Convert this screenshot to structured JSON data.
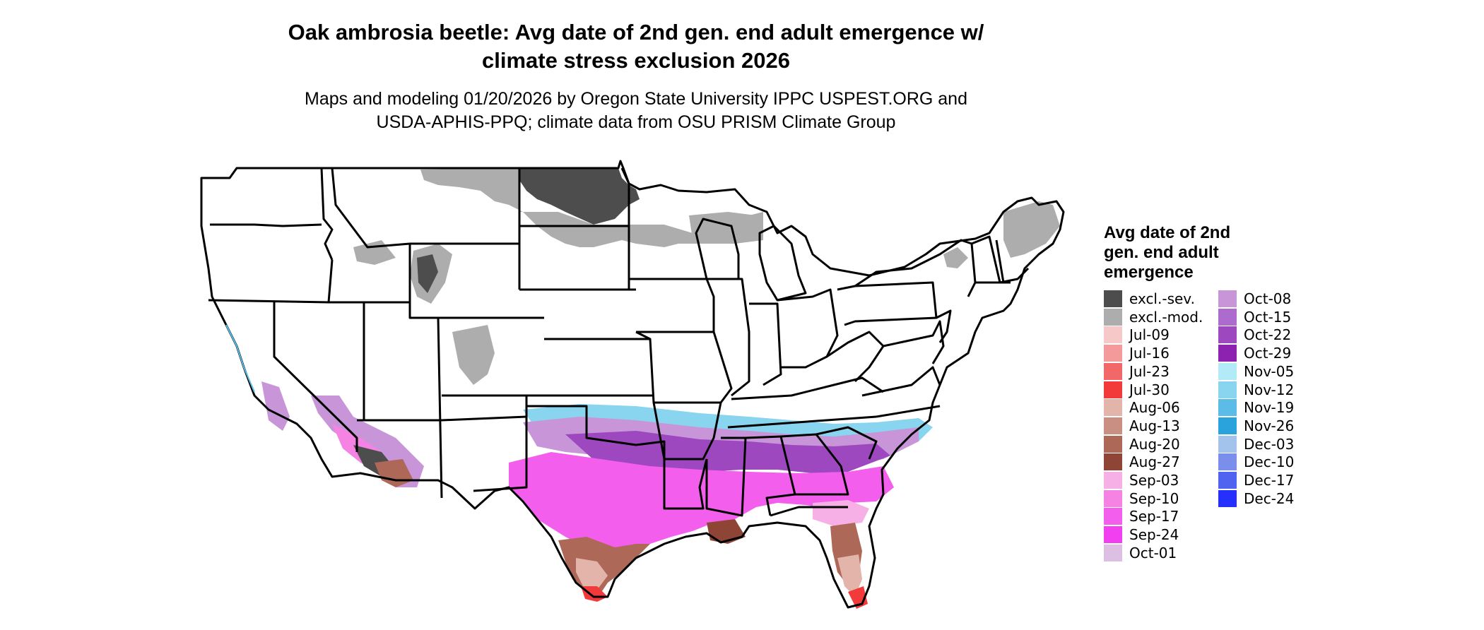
{
  "title_line1": "Oak ambrosia beetle: Avg date of 2nd gen. end adult emergence w/",
  "title_line2": "climate stress exclusion 2026",
  "subtitle_line1": "Maps and modeling 01/20/2026 by Oregon State University IPPC USPEST.ORG and",
  "subtitle_line2": "USDA-APHIS-PPQ; climate data from OSU PRISM Climate Group",
  "legend": {
    "title_line1": "Avg date of 2nd",
    "title_line2": "gen. end adult",
    "title_line3": "emergence",
    "items": [
      {
        "label": "excl.-sev.",
        "color": "#4d4d4d"
      },
      {
        "label": "excl.-mod.",
        "color": "#adadad"
      },
      {
        "label": "Jul-09",
        "color": "#f7c8c8"
      },
      {
        "label": "Jul-16",
        "color": "#f49a9a"
      },
      {
        "label": "Jul-23",
        "color": "#f26868"
      },
      {
        "label": "Jul-30",
        "color": "#f23a3a"
      },
      {
        "label": "Aug-06",
        "color": "#e3b4aa"
      },
      {
        "label": "Aug-13",
        "color": "#c98f82"
      },
      {
        "label": "Aug-20",
        "color": "#ad6858"
      },
      {
        "label": "Aug-27",
        "color": "#8f4535"
      },
      {
        "label": "Sep-03",
        "color": "#f7b0e6"
      },
      {
        "label": "Sep-10",
        "color": "#f483e4"
      },
      {
        "label": "Sep-17",
        "color": "#f35fec"
      },
      {
        "label": "Sep-24",
        "color": "#f23ff0"
      },
      {
        "label": "Oct-01",
        "color": "#ddbfe3"
      },
      {
        "label": "Oct-08",
        "color": "#c895d8"
      },
      {
        "label": "Oct-15",
        "color": "#ad6ccd"
      },
      {
        "label": "Oct-22",
        "color": "#9e48c0"
      },
      {
        "label": "Oct-29",
        "color": "#8e22b0"
      },
      {
        "label": "Nov-05",
        "color": "#b2ebf7"
      },
      {
        "label": "Nov-12",
        "color": "#89d4ef"
      },
      {
        "label": "Nov-19",
        "color": "#5bbde7"
      },
      {
        "label": "Nov-26",
        "color": "#2aa3dc"
      },
      {
        "label": "Dec-03",
        "color": "#a3c2ec"
      },
      {
        "label": "Dec-10",
        "color": "#7a8fec"
      },
      {
        "label": "Dec-17",
        "color": "#5062f0"
      },
      {
        "label": "Dec-24",
        "color": "#2630fc"
      }
    ]
  }
}
